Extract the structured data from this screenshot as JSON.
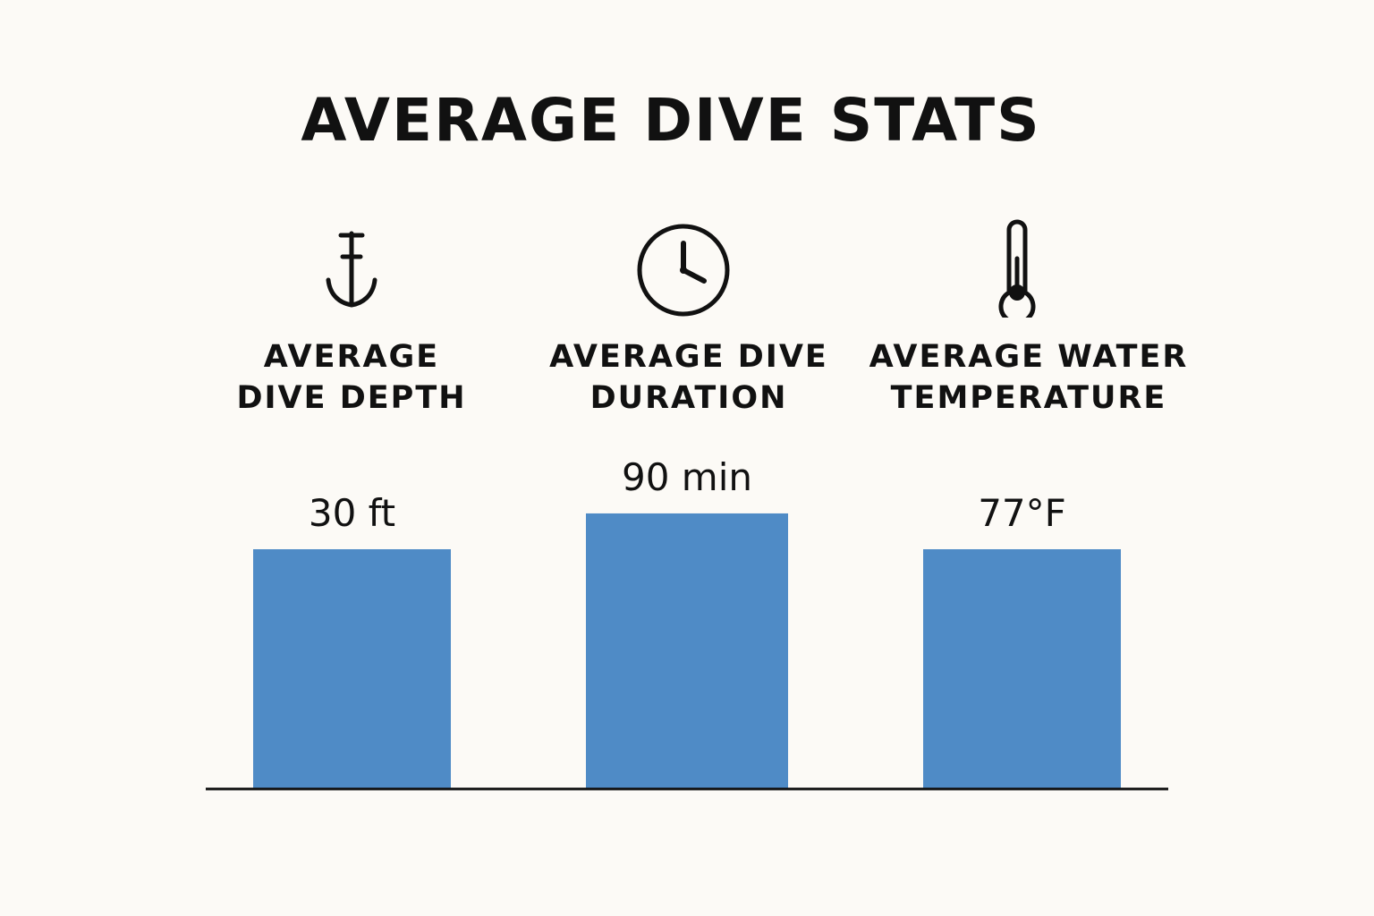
{
  "chart_data": {
    "type": "bar",
    "title": "AVERAGE DIVE STATS",
    "categories": [
      {
        "line1": "AVERAGE",
        "line2": "DIVE DEPTH",
        "icon": "anchor-icon"
      },
      {
        "line1": "AVERAGE DIVE",
        "line2": "DURATION",
        "icon": "clock-icon"
      },
      {
        "line1": "AVERAGE WATER",
        "line2": "TEMPERATURE",
        "icon": "thermometer-icon"
      }
    ],
    "values": [
      30,
      90,
      77
    ],
    "value_labels": [
      "30 ft",
      "90 min",
      "77°F"
    ],
    "relative_heights": [
      1.0,
      1.15,
      1.0
    ],
    "bar_color": "#4F8BC6",
    "axis_color": "#111111",
    "grid": false,
    "xlabel": "",
    "ylabel": ""
  }
}
